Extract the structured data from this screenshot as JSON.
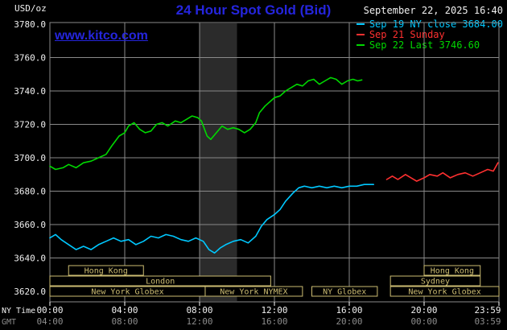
{
  "header": {
    "unit_label": "USD/oz",
    "title": "24 Hour Spot Gold (Bid)",
    "datetime": "September 22, 2025 16:40",
    "watermark": "www.kitco.com"
  },
  "legend": [
    {
      "label": "Sep 19 NY close 3684.00",
      "color": "#00c8ff"
    },
    {
      "label": "Sep 21 Sunday",
      "color": "#ff3030"
    },
    {
      "label": "Sep 22 Last 3746.60",
      "color": "#00d800"
    }
  ],
  "axes": {
    "ny_caption": "NY Time",
    "gmt_caption": "GMT",
    "y_ticks": [
      3780,
      3760,
      3740,
      3720,
      3700,
      3680,
      3660,
      3640,
      3620
    ],
    "x_tick_hours": [
      0,
      4,
      8,
      12,
      16,
      20,
      24
    ],
    "x_ticks_ny": [
      "00:00",
      "04:00",
      "08:00",
      "12:00",
      "16:00",
      "20:00",
      "23:59"
    ],
    "x_ticks_gmt": [
      "04:00",
      "08:00",
      "12:00",
      "16:00",
      "20:00",
      "00:00",
      "03:59"
    ]
  },
  "sessions": [
    {
      "row": 0,
      "start": 1.0,
      "end": 5.0,
      "label": "Hong Kong"
    },
    {
      "row": 0,
      "start": 20.0,
      "end": 23.0,
      "label": "Hong Kong"
    },
    {
      "row": 1,
      "start": 0.0,
      "end": 11.8,
      "label": "London"
    },
    {
      "row": 1,
      "start": 18.2,
      "end": 23.0,
      "label": "Sydney"
    },
    {
      "row": 2,
      "start": 0.0,
      "end": 8.3,
      "label": "New York Globex"
    },
    {
      "row": 2,
      "start": 8.3,
      "end": 13.5,
      "label": "New York NYMEX"
    },
    {
      "row": 2,
      "start": 14.0,
      "end": 17.5,
      "label": "NY Globex"
    },
    {
      "row": 2,
      "start": 18.2,
      "end": 24.0,
      "label": "New York Globex"
    }
  ],
  "chart_data": {
    "type": "line",
    "title": "24 Hour Spot Gold (Bid)",
    "ylabel": "USD/oz",
    "xlabel": "NY Time (hours 00:00-23:59)",
    "ylim": [
      3620,
      3780
    ],
    "xlim_hours": [
      0,
      24
    ],
    "y_tick_step": 20,
    "grid": true,
    "legend_position": "top-right",
    "band_hours": {
      "start": 8.0,
      "end": 10.0
    },
    "series": [
      {
        "id": "sep19",
        "name": "Sep 19 NY close",
        "close": 3684.0,
        "color": "#00c8ff",
        "points": [
          [
            0,
            3652
          ],
          [
            0.3,
            3654
          ],
          [
            0.6,
            3651
          ],
          [
            1,
            3648
          ],
          [
            1.4,
            3645
          ],
          [
            1.8,
            3647
          ],
          [
            2.2,
            3645
          ],
          [
            2.6,
            3648
          ],
          [
            3,
            3650
          ],
          [
            3.4,
            3652
          ],
          [
            3.8,
            3650
          ],
          [
            4.2,
            3651
          ],
          [
            4.6,
            3648
          ],
          [
            5,
            3650
          ],
          [
            5.4,
            3653
          ],
          [
            5.8,
            3652
          ],
          [
            6.2,
            3654
          ],
          [
            6.6,
            3653
          ],
          [
            7,
            3651
          ],
          [
            7.4,
            3650
          ],
          [
            7.8,
            3652
          ],
          [
            8.2,
            3650
          ],
          [
            8.5,
            3645
          ],
          [
            8.8,
            3643
          ],
          [
            9.1,
            3646
          ],
          [
            9.4,
            3648
          ],
          [
            9.8,
            3650
          ],
          [
            10.2,
            3651
          ],
          [
            10.6,
            3649
          ],
          [
            11,
            3653
          ],
          [
            11.3,
            3659
          ],
          [
            11.6,
            3663
          ],
          [
            12,
            3666
          ],
          [
            12.3,
            3669
          ],
          [
            12.6,
            3674
          ],
          [
            13,
            3679
          ],
          [
            13.3,
            3682
          ],
          [
            13.6,
            3683
          ],
          [
            14,
            3682
          ],
          [
            14.4,
            3683
          ],
          [
            14.8,
            3682
          ],
          [
            15.2,
            3683
          ],
          [
            15.6,
            3682
          ],
          [
            16,
            3683
          ],
          [
            16.4,
            3683
          ],
          [
            16.8,
            3684
          ],
          [
            17.3,
            3684
          ]
        ]
      },
      {
        "id": "sep21",
        "name": "Sep 21 Sunday",
        "color": "#ff3030",
        "points": [
          [
            18,
            3687
          ],
          [
            18.3,
            3689
          ],
          [
            18.6,
            3687
          ],
          [
            19,
            3690
          ],
          [
            19.3,
            3688
          ],
          [
            19.6,
            3686
          ],
          [
            20,
            3688
          ],
          [
            20.3,
            3690
          ],
          [
            20.7,
            3689
          ],
          [
            21,
            3691
          ],
          [
            21.4,
            3688
          ],
          [
            21.8,
            3690
          ],
          [
            22.2,
            3691
          ],
          [
            22.6,
            3689
          ],
          [
            23,
            3691
          ],
          [
            23.4,
            3693
          ],
          [
            23.7,
            3692
          ],
          [
            23.95,
            3697
          ]
        ]
      },
      {
        "id": "sep22",
        "name": "Sep 22 Last",
        "last": 3746.6,
        "color": "#00d800",
        "points": [
          [
            0,
            3695
          ],
          [
            0.3,
            3693
          ],
          [
            0.7,
            3694
          ],
          [
            1,
            3696
          ],
          [
            1.4,
            3694
          ],
          [
            1.8,
            3697
          ],
          [
            2.2,
            3698
          ],
          [
            2.6,
            3700
          ],
          [
            3,
            3702
          ],
          [
            3.3,
            3707
          ],
          [
            3.7,
            3713
          ],
          [
            4,
            3715
          ],
          [
            4.2,
            3719
          ],
          [
            4.5,
            3721
          ],
          [
            4.8,
            3717
          ],
          [
            5.1,
            3715
          ],
          [
            5.4,
            3716
          ],
          [
            5.7,
            3720
          ],
          [
            6,
            3721
          ],
          [
            6.3,
            3719
          ],
          [
            6.7,
            3722
          ],
          [
            7,
            3721
          ],
          [
            7.3,
            3723
          ],
          [
            7.6,
            3725
          ],
          [
            7.9,
            3724
          ],
          [
            8.1,
            3722
          ],
          [
            8.4,
            3713
          ],
          [
            8.6,
            3711
          ],
          [
            8.9,
            3715
          ],
          [
            9.2,
            3719
          ],
          [
            9.5,
            3717
          ],
          [
            9.8,
            3718
          ],
          [
            10.1,
            3717
          ],
          [
            10.4,
            3715
          ],
          [
            10.7,
            3717
          ],
          [
            11,
            3721
          ],
          [
            11.2,
            3727
          ],
          [
            11.5,
            3731
          ],
          [
            11.8,
            3734
          ],
          [
            12,
            3736
          ],
          [
            12.3,
            3737
          ],
          [
            12.6,
            3740
          ],
          [
            12.9,
            3742
          ],
          [
            13.2,
            3744
          ],
          [
            13.5,
            3743
          ],
          [
            13.8,
            3746
          ],
          [
            14.1,
            3747
          ],
          [
            14.4,
            3744
          ],
          [
            14.7,
            3746
          ],
          [
            15,
            3748
          ],
          [
            15.3,
            3747
          ],
          [
            15.6,
            3744
          ],
          [
            15.9,
            3746
          ],
          [
            16.2,
            3747
          ],
          [
            16.45,
            3746
          ],
          [
            16.67,
            3746.6
          ]
        ]
      }
    ]
  },
  "colors": {
    "background": "#000000",
    "title_blue": "#2525dd",
    "watermark_blue": "#2525dd",
    "grid": "#8a8a8a",
    "frame": "#8a8a8a",
    "band": "#2b2b2b",
    "session": "#ccbc72",
    "axis_text": "#f0f0f0",
    "axis_text_dim": "#8c8c8c",
    "tick": "#ffffff"
  }
}
